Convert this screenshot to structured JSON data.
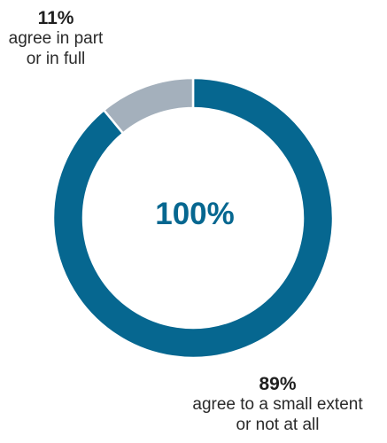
{
  "chart_data": {
    "type": "pie",
    "variant": "donut",
    "center_label": "100%",
    "slices": [
      {
        "value": 89,
        "percent_label": "89%",
        "text_lines": [
          "agree to a small extent",
          "or not at all"
        ],
        "color": "#066790"
      },
      {
        "value": 11,
        "percent_label": "11%",
        "text_lines": [
          "agree in part",
          "or in full"
        ],
        "color": "#a4b0bc"
      }
    ],
    "legend": "none",
    "grid": false
  }
}
